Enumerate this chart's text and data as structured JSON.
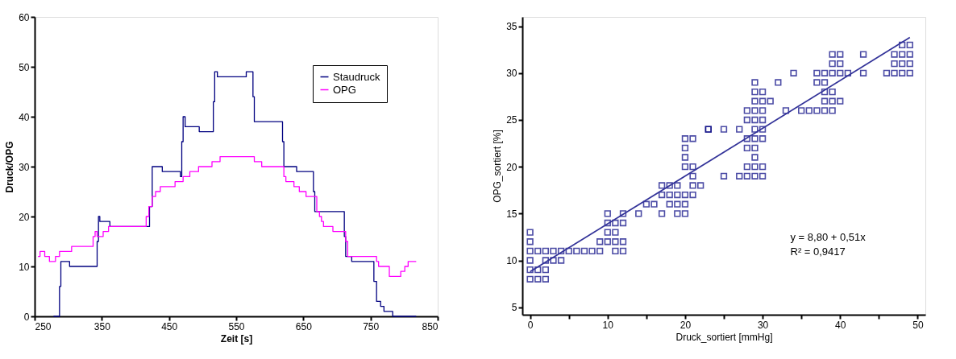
{
  "chart_data": [
    {
      "type": "step",
      "xlabel": "Zeit [s]",
      "ylabel": "Druck/OPG",
      "xlim": [
        250,
        850
      ],
      "xticks": [
        250,
        350,
        450,
        550,
        650,
        750,
        850
      ],
      "ylim": [
        0,
        60
      ],
      "yticks": [
        0,
        10,
        20,
        30,
        40,
        50,
        60
      ],
      "grid": false,
      "legend": "top right",
      "series": [
        {
          "name": "Staudruck",
          "color": "#000080",
          "x": [
            278,
            287,
            289,
            302,
            343,
            345,
            347,
            362,
            421,
            425,
            440,
            467,
            469,
            471,
            474,
            495,
            516,
            518,
            522,
            565,
            575,
            577,
            619,
            621,
            640,
            665,
            667,
            711,
            713,
            722,
            755,
            759,
            765,
            770,
            783,
            818
          ],
          "values": [
            0,
            6,
            11,
            10,
            15,
            20,
            19,
            18,
            22,
            30,
            29,
            28,
            35,
            40,
            38,
            37,
            43,
            49,
            48,
            49,
            44,
            39,
            35,
            30,
            29,
            25,
            21,
            16,
            12,
            11,
            7,
            3,
            2,
            1,
            0,
            0
          ]
        },
        {
          "name": "OPG",
          "color": "#ff00ff",
          "x": [
            255,
            258,
            265,
            272,
            281,
            287,
            305,
            337,
            340,
            343,
            352,
            360,
            416,
            420,
            425,
            430,
            437,
            459,
            471,
            481,
            494,
            514,
            526,
            577,
            588,
            621,
            624,
            636,
            644,
            654,
            670,
            674,
            677,
            680,
            694,
            713,
            716,
            759,
            762,
            778,
            795,
            801,
            806,
            818
          ],
          "values": [
            12,
            13,
            12,
            11,
            12,
            13,
            14,
            16,
            17,
            16,
            17,
            18,
            20,
            22,
            24,
            25,
            26,
            27,
            28,
            29,
            30,
            31,
            32,
            31,
            30,
            28,
            27,
            26,
            25,
            24,
            21,
            20,
            19,
            18,
            17,
            15,
            12,
            11,
            10,
            8,
            9,
            10,
            11,
            11
          ]
        }
      ]
    },
    {
      "type": "scatter",
      "xlabel": "Druck_sortiert [mmHg]",
      "ylabel": "OPG_sortiert [%]",
      "xlim": [
        -1,
        51
      ],
      "xticks": [
        0,
        {
          "value": 5,
          "label": null
        },
        10,
        {
          "value": 15,
          "label": null
        },
        20,
        {
          "value": 25,
          "label": null
        },
        30,
        {
          "value": 35,
          "label": null
        },
        40,
        {
          "value": 45,
          "label": null
        },
        50
      ],
      "ylim": [
        4.2,
        36
      ],
      "yticks": [
        5,
        10,
        15,
        20,
        25,
        30,
        35
      ],
      "grid": false,
      "marker": "square",
      "annotations": [
        "y = 8,80 + 0,51x",
        "R² = 0,9417"
      ],
      "series": [
        {
          "color": "#000080",
          "x": [
            0,
            0,
            0,
            0,
            0,
            0,
            1,
            1,
            1,
            2,
            2,
            2,
            2,
            3,
            3,
            4,
            4,
            5,
            6,
            7,
            8,
            9,
            9,
            10,
            10,
            10,
            10,
            11,
            11,
            11,
            11,
            12,
            12,
            12,
            12,
            14,
            15,
            16,
            17,
            17,
            17,
            18,
            18,
            18,
            19,
            19,
            19,
            19,
            20,
            20,
            20,
            20,
            20,
            20,
            20,
            21,
            21,
            21,
            21,
            21,
            22,
            23,
            25,
            27,
            28,
            29,
            30,
            28,
            29,
            30,
            29,
            28,
            29,
            28,
            29,
            30,
            23,
            25,
            27,
            29,
            30,
            28,
            29,
            30,
            28,
            29,
            30,
            33,
            35,
            36,
            37,
            38,
            39,
            29,
            30,
            31,
            38,
            39,
            40,
            29,
            30,
            38,
            39,
            29,
            32,
            37,
            38,
            34,
            37,
            38,
            39,
            40,
            41,
            43,
            46,
            47,
            48,
            49,
            39,
            40,
            47,
            48,
            49,
            39,
            40,
            43,
            47,
            48,
            49,
            48,
            49
          ],
          "values": [
            8,
            9,
            10,
            11,
            12,
            13,
            8,
            9,
            11,
            8,
            9,
            10,
            11,
            10,
            11,
            10,
            11,
            11,
            11,
            11,
            11,
            11,
            12,
            12,
            13,
            14,
            15,
            11,
            12,
            13,
            14,
            11,
            12,
            14,
            15,
            15,
            16,
            16,
            15,
            17,
            18,
            16,
            17,
            18,
            15,
            16,
            17,
            18,
            15,
            16,
            17,
            20,
            21,
            22,
            23,
            17,
            18,
            19,
            20,
            23,
            18,
            24,
            19,
            19,
            19,
            19,
            19,
            20,
            20,
            20,
            21,
            22,
            22,
            23,
            23,
            23,
            24,
            24,
            24,
            24,
            24,
            25,
            25,
            25,
            26,
            26,
            26,
            26,
            26,
            26,
            26,
            26,
            26,
            27,
            27,
            27,
            27,
            27,
            27,
            28,
            28,
            28,
            28,
            29,
            29,
            29,
            29,
            30,
            30,
            30,
            30,
            30,
            30,
            30,
            30,
            30,
            30,
            30,
            31,
            31,
            31,
            31,
            31,
            32,
            32,
            32,
            32,
            32,
            32,
            33,
            33
          ]
        },
        {
          "type": "line",
          "marker": "none",
          "color": "#333399",
          "x": [
            0,
            49
          ],
          "values": [
            8.8,
            33.8
          ]
        }
      ]
    }
  ]
}
